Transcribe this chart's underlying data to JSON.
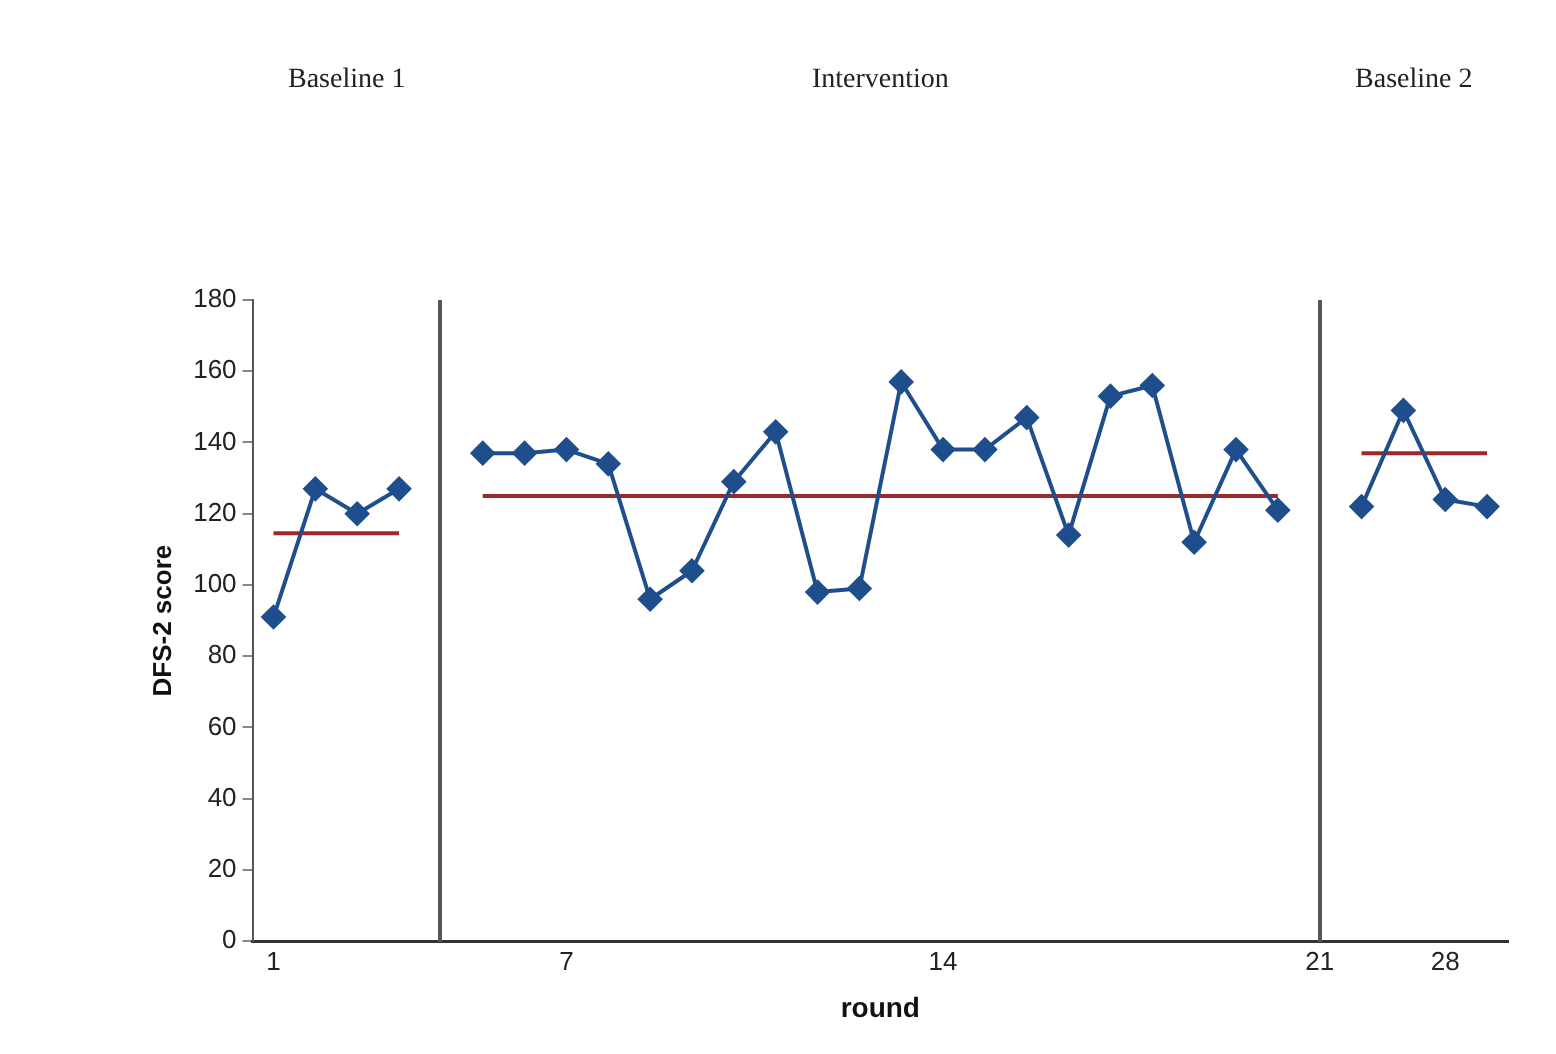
{
  "chart_data": {
    "type": "line",
    "xlabel": "round",
    "ylabel": "DFS-2 score",
    "annotations": [
      "Baseline 1",
      "Intervention",
      "Baseline 2"
    ],
    "categories": [
      "1",
      null,
      null,
      null,
      null,
      null,
      null,
      "7",
      null,
      null,
      null,
      null,
      null,
      null,
      null,
      null,
      "14",
      null,
      null,
      null,
      null,
      null,
      null,
      null,
      null,
      "21",
      null,
      null,
      "28",
      null
    ],
    "series": [
      {
        "color": "#1f4e8c",
        "marker": "diamond",
        "values": [
          91,
          127,
          120,
          127,
          null,
          137,
          137,
          138,
          134,
          96,
          104,
          129,
          143,
          98,
          99,
          157,
          138,
          138,
          147,
          114,
          153,
          156,
          112,
          138,
          121,
          null,
          122,
          149,
          124,
          122
        ]
      },
      {
        "color": "#a0282a",
        "marker": "none",
        "values": [
          114.5,
          114.5,
          114.5,
          114.5,
          null,
          null,
          null,
          null,
          null,
          null,
          null,
          null,
          null,
          null,
          null,
          null,
          null,
          null,
          null,
          null,
          null,
          null,
          null,
          null,
          null,
          null,
          null,
          null,
          null,
          null
        ]
      },
      {
        "color": "#a0282a",
        "marker": "none",
        "values": [
          null,
          null,
          null,
          null,
          null,
          125,
          125,
          125,
          125,
          125,
          125,
          125,
          125,
          125,
          125,
          125,
          125,
          125,
          125,
          125,
          125,
          125,
          125,
          125,
          125,
          null,
          null,
          null,
          null,
          null
        ]
      },
      {
        "color": "#a0282a",
        "marker": "none",
        "values": [
          null,
          null,
          null,
          null,
          null,
          null,
          null,
          null,
          null,
          null,
          null,
          null,
          null,
          null,
          null,
          null,
          null,
          null,
          null,
          null,
          null,
          null,
          null,
          null,
          null,
          null,
          137,
          137,
          137,
          137
        ]
      }
    ],
    "ylim": [
      0,
      180
    ],
    "yticks": [
      0,
      20,
      40,
      60,
      80,
      100,
      120,
      140,
      160,
      180
    ],
    "grid": false,
    "legend": false
  }
}
